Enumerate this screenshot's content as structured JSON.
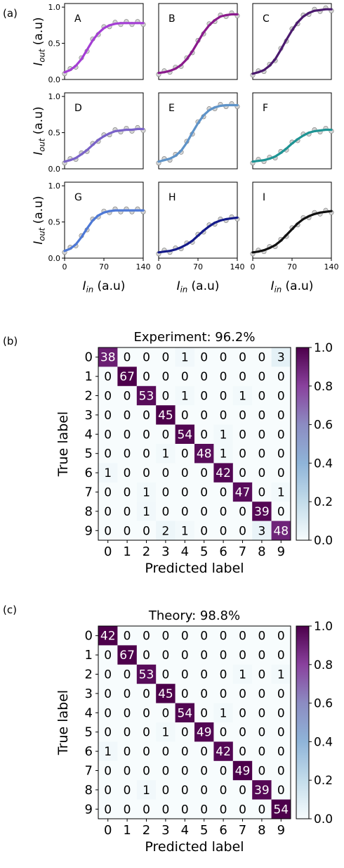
{
  "panel_labels": [
    "(a)",
    "(b)",
    "(c)"
  ],
  "chart_data": [
    {
      "type": "line",
      "panel": "(a)",
      "xlabel_main": "I",
      "xlabel_sub": "in",
      "xlabel_unit": "(a.u)",
      "ylabel_main": "I",
      "ylabel_sub": "out",
      "ylabel_unit": "(a.u)",
      "xlim": [
        0,
        140
      ],
      "ylim": [
        0,
        1.05
      ],
      "xticks": [
        "0",
        "70",
        "140"
      ],
      "yticks": [
        "0.0",
        "0.5",
        "1.0"
      ],
      "x": [
        0,
        10,
        20,
        30,
        40,
        50,
        60,
        70,
        80,
        90,
        100,
        110,
        120,
        130,
        140
      ],
      "subplots": [
        {
          "name": "A",
          "color": "#a43ed4",
          "values": [
            0.1,
            0.13,
            0.19,
            0.28,
            0.41,
            0.54,
            0.64,
            0.71,
            0.75,
            0.77,
            0.78,
            0.78,
            0.78,
            0.78,
            0.78
          ]
        },
        {
          "name": "B",
          "color": "#8a1a8c",
          "values": [
            0.09,
            0.1,
            0.12,
            0.15,
            0.2,
            0.28,
            0.39,
            0.52,
            0.65,
            0.75,
            0.82,
            0.87,
            0.89,
            0.9,
            0.9
          ]
        },
        {
          "name": "C",
          "color": "#4b1a6e",
          "values": [
            0.08,
            0.1,
            0.13,
            0.19,
            0.28,
            0.41,
            0.55,
            0.68,
            0.79,
            0.87,
            0.92,
            0.95,
            0.96,
            0.97,
            0.97
          ]
        },
        {
          "name": "D",
          "color": "#7a62c8",
          "values": [
            0.1,
            0.12,
            0.15,
            0.2,
            0.26,
            0.33,
            0.4,
            0.45,
            0.49,
            0.52,
            0.53,
            0.54,
            0.54,
            0.55,
            0.55
          ]
        },
        {
          "name": "E",
          "color": "#5e93c8",
          "values": [
            0.1,
            0.12,
            0.14,
            0.18,
            0.25,
            0.36,
            0.5,
            0.63,
            0.74,
            0.81,
            0.85,
            0.87,
            0.88,
            0.88,
            0.88
          ]
        },
        {
          "name": "F",
          "color": "#1e9494",
          "values": [
            0.1,
            0.11,
            0.12,
            0.14,
            0.17,
            0.22,
            0.28,
            0.35,
            0.41,
            0.46,
            0.5,
            0.52,
            0.53,
            0.54,
            0.54
          ]
        },
        {
          "name": "G",
          "color": "#4d78d6",
          "values": [
            0.1,
            0.13,
            0.19,
            0.29,
            0.41,
            0.52,
            0.59,
            0.63,
            0.65,
            0.66,
            0.66,
            0.66,
            0.66,
            0.66,
            0.66
          ]
        },
        {
          "name": "H",
          "color": "#141a8a",
          "values": [
            0.08,
            0.09,
            0.1,
            0.12,
            0.15,
            0.19,
            0.24,
            0.31,
            0.38,
            0.44,
            0.49,
            0.52,
            0.54,
            0.55,
            0.56
          ]
        },
        {
          "name": "I",
          "color": "#111111",
          "values": [
            0.08,
            0.09,
            0.11,
            0.14,
            0.18,
            0.24,
            0.32,
            0.4,
            0.48,
            0.54,
            0.58,
            0.61,
            0.63,
            0.64,
            0.65
          ]
        }
      ]
    },
    {
      "type": "heatmap",
      "panel": "(b)",
      "title": "Experiment: 96.2%",
      "xlabel": "Predicted label",
      "ylabel": "True label",
      "labels": [
        "0",
        "1",
        "2",
        "3",
        "4",
        "5",
        "6",
        "7",
        "8",
        "9"
      ],
      "colorbar_ticks": [
        "0.0",
        "0.2",
        "0.4",
        "0.6",
        "0.8",
        "1.0"
      ],
      "matrix": [
        [
          38,
          0,
          0,
          0,
          1,
          0,
          0,
          0,
          0,
          3
        ],
        [
          0,
          67,
          0,
          0,
          0,
          0,
          0,
          0,
          0,
          0
        ],
        [
          0,
          0,
          53,
          0,
          1,
          0,
          0,
          1,
          0,
          0
        ],
        [
          0,
          0,
          0,
          45,
          0,
          0,
          0,
          0,
          0,
          0
        ],
        [
          0,
          0,
          0,
          0,
          54,
          0,
          1,
          0,
          0,
          0
        ],
        [
          0,
          0,
          0,
          1,
          0,
          48,
          1,
          0,
          0,
          0
        ],
        [
          1,
          0,
          0,
          0,
          0,
          0,
          42,
          0,
          0,
          0
        ],
        [
          0,
          0,
          1,
          0,
          0,
          0,
          0,
          47,
          0,
          1
        ],
        [
          0,
          0,
          1,
          0,
          0,
          0,
          0,
          0,
          39,
          0
        ],
        [
          0,
          0,
          0,
          2,
          1,
          0,
          0,
          0,
          3,
          48
        ]
      ]
    },
    {
      "type": "heatmap",
      "panel": "(c)",
      "title": "Theory: 98.8%",
      "xlabel": "Predicted label",
      "ylabel": "True label",
      "labels": [
        "0",
        "1",
        "2",
        "3",
        "4",
        "5",
        "6",
        "7",
        "8",
        "9"
      ],
      "colorbar_ticks": [
        "0.0",
        "0.2",
        "0.4",
        "0.6",
        "0.8",
        "1.0"
      ],
      "matrix": [
        [
          42,
          0,
          0,
          0,
          0,
          0,
          0,
          0,
          0,
          0
        ],
        [
          0,
          67,
          0,
          0,
          0,
          0,
          0,
          0,
          0,
          0
        ],
        [
          0,
          0,
          53,
          0,
          0,
          0,
          0,
          1,
          0,
          1
        ],
        [
          0,
          0,
          0,
          45,
          0,
          0,
          0,
          0,
          0,
          0
        ],
        [
          0,
          0,
          0,
          0,
          54,
          0,
          1,
          0,
          0,
          0
        ],
        [
          0,
          0,
          0,
          1,
          0,
          49,
          0,
          0,
          0,
          0
        ],
        [
          1,
          0,
          0,
          0,
          0,
          0,
          42,
          0,
          0,
          0
        ],
        [
          0,
          0,
          0,
          0,
          0,
          0,
          0,
          49,
          0,
          0
        ],
        [
          0,
          0,
          1,
          0,
          0,
          0,
          0,
          0,
          39,
          0
        ],
        [
          0,
          0,
          0,
          0,
          0,
          0,
          0,
          0,
          0,
          54
        ]
      ]
    }
  ]
}
